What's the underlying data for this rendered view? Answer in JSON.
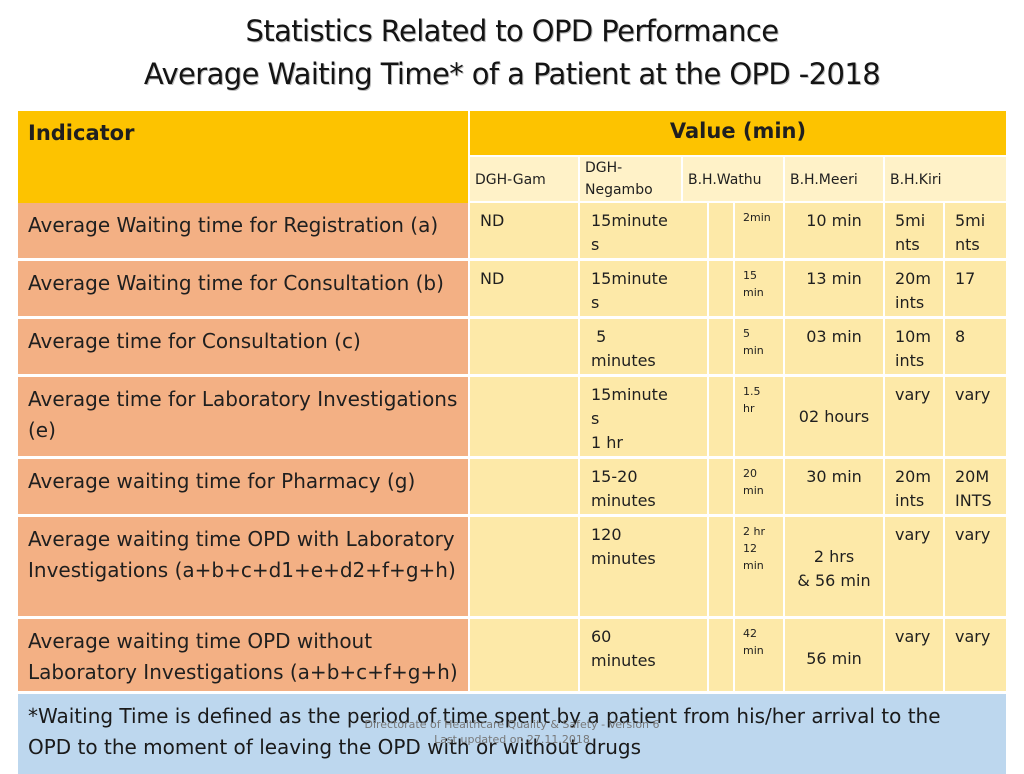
{
  "title": {
    "line1": "Statistics Related to OPD Performance",
    "line2": "Average Waiting Time* of a Patient at the OPD -2018"
  },
  "table": {
    "indicator_header": "Indicator",
    "value_header": "Value (min)",
    "hospitals": [
      "DGH-Gam",
      "DGH-\nNegambo",
      "B.H.Wathu",
      "B.H.Meeri",
      "B.H.Kiri"
    ],
    "rows": [
      {
        "indicator": "Average Waiting time for Registration (a)",
        "c1": "ND",
        "c2": "15minute\ns",
        "c3": "2min",
        "c4": "10 min",
        "c5": "5mi\nnts",
        "c6": "5mi\nnts"
      },
      {
        "indicator": "Average Waiting time for Consultation (b)",
        "c1": "ND",
        "c2": "15minute\ns",
        "c3": "15\nmin",
        "c4": "13 min",
        "c5": "20m\nints",
        "c6": "17"
      },
      {
        "indicator": "Average time for Consultation (c)",
        "c1": "",
        "c2": " 5\nminutes",
        "c3": "5\nmin",
        "c4": "03 min",
        "c5": "10m\nints",
        "c6": "8"
      },
      {
        "indicator": "Average time for Laboratory Investigations (e)",
        "c1": "",
        "c2": "15minute\ns\n1 hr",
        "c3": "1.5\nhr",
        "c4": "02 hours",
        "c5": "vary",
        "c6": "vary"
      },
      {
        "indicator": "Average waiting time for Pharmacy (g)",
        "c1": "",
        "c2": "15-20\nminutes",
        "c3": "20\nmin",
        "c4": "30 min",
        "c5": "20m\nints",
        "c6": "20M\nINTS"
      },
      {
        "indicator": "Average waiting time OPD with Laboratory Investigations (a+b+c+d1+e+d2+f+g+h)",
        "c1": "",
        "c2": "120\nminutes",
        "c3": "2 hr\n12\nmin",
        "c4": "2 hrs\n& 56 min",
        "c5": "vary",
        "c6": "vary"
      },
      {
        "indicator": "Average waiting time OPD without Laboratory Investigations (a+b+c+f+g+h)",
        "c1": "",
        "c2": "60\nminutes",
        "c3": "42\nmin",
        "c4": "56 min",
        "c5": "vary",
        "c6": "vary"
      }
    ]
  },
  "note": {
    "line1": "*Waiting Time is defined as the period of time spent by a patient from his/her arrival to the",
    "line2": "OPD to the moment of leaving the OPD with or without drugs"
  },
  "footer": {
    "line1": "Directorate of Healthcare Quality & Safety - Version 6",
    "line2": "Last updated on 27.11.2018"
  }
}
